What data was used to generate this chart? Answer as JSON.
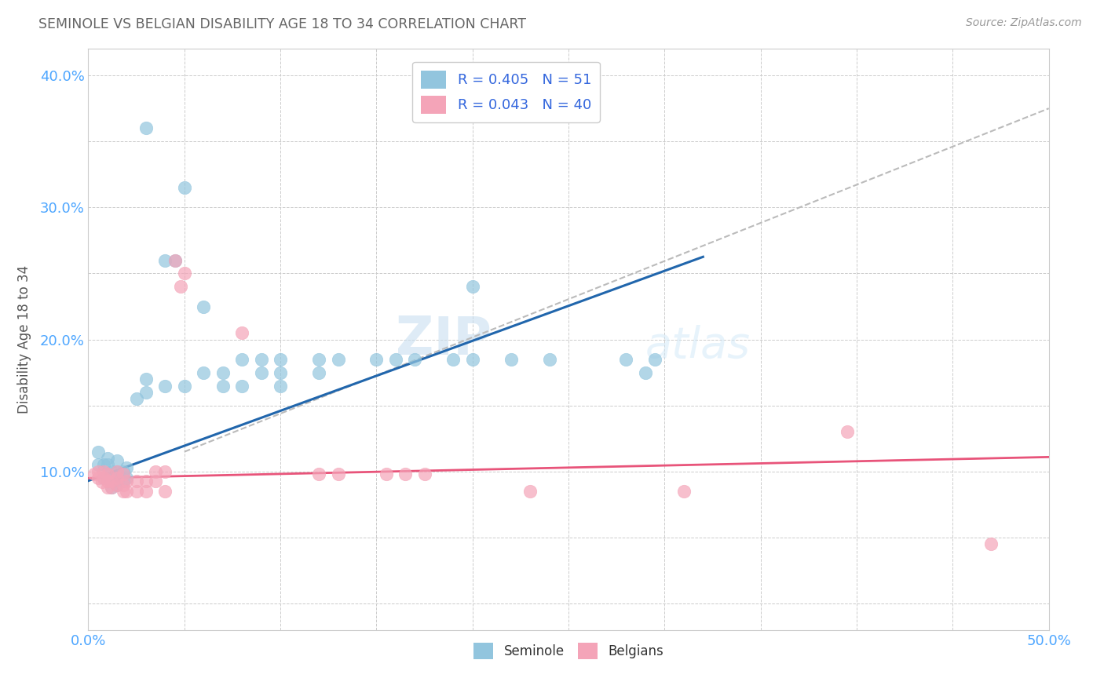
{
  "title": "SEMINOLE VS BELGIAN DISABILITY AGE 18 TO 34 CORRELATION CHART",
  "source": "Source: ZipAtlas.com",
  "ylabel": "Disability Age 18 to 34",
  "xlim": [
    0.0,
    0.5
  ],
  "ylim": [
    -0.02,
    0.42
  ],
  "xticks": [
    0.0,
    0.05,
    0.1,
    0.15,
    0.2,
    0.25,
    0.3,
    0.35,
    0.4,
    0.45,
    0.5
  ],
  "yticks": [
    0.0,
    0.05,
    0.1,
    0.15,
    0.2,
    0.25,
    0.3,
    0.35,
    0.4
  ],
  "seminole_R": 0.405,
  "seminole_N": 51,
  "belgian_R": 0.043,
  "belgian_N": 40,
  "seminole_color": "#92c5de",
  "belgian_color": "#f4a4b8",
  "seminole_line_color": "#2166ac",
  "belgian_line_color": "#e8547a",
  "trend_line_color": "#bbbbbb",
  "background_color": "#ffffff",
  "watermark_zip": "ZIP",
  "watermark_atlas": "atlas",
  "seminole_scatter": [
    [
      0.005,
      0.105
    ],
    [
      0.005,
      0.115
    ],
    [
      0.008,
      0.095
    ],
    [
      0.008,
      0.105
    ],
    [
      0.01,
      0.095
    ],
    [
      0.01,
      0.105
    ],
    [
      0.01,
      0.11
    ],
    [
      0.012,
      0.088
    ],
    [
      0.012,
      0.093
    ],
    [
      0.012,
      0.1
    ],
    [
      0.015,
      0.09
    ],
    [
      0.015,
      0.1
    ],
    [
      0.015,
      0.108
    ],
    [
      0.018,
      0.093
    ],
    [
      0.018,
      0.1
    ],
    [
      0.02,
      0.095
    ],
    [
      0.02,
      0.103
    ],
    [
      0.025,
      0.155
    ],
    [
      0.03,
      0.16
    ],
    [
      0.03,
      0.17
    ],
    [
      0.04,
      0.165
    ],
    [
      0.04,
      0.26
    ],
    [
      0.045,
      0.26
    ],
    [
      0.05,
      0.165
    ],
    [
      0.06,
      0.175
    ],
    [
      0.06,
      0.225
    ],
    [
      0.07,
      0.165
    ],
    [
      0.07,
      0.175
    ],
    [
      0.08,
      0.165
    ],
    [
      0.08,
      0.185
    ],
    [
      0.09,
      0.175
    ],
    [
      0.09,
      0.185
    ],
    [
      0.1,
      0.165
    ],
    [
      0.1,
      0.175
    ],
    [
      0.1,
      0.185
    ],
    [
      0.12,
      0.175
    ],
    [
      0.12,
      0.185
    ],
    [
      0.13,
      0.185
    ],
    [
      0.15,
      0.185
    ],
    [
      0.16,
      0.185
    ],
    [
      0.17,
      0.185
    ],
    [
      0.19,
      0.185
    ],
    [
      0.2,
      0.24
    ],
    [
      0.22,
      0.185
    ],
    [
      0.2,
      0.185
    ],
    [
      0.03,
      0.36
    ],
    [
      0.05,
      0.315
    ],
    [
      0.24,
      0.185
    ],
    [
      0.28,
      0.185
    ],
    [
      0.29,
      0.175
    ],
    [
      0.295,
      0.185
    ]
  ],
  "belgian_scatter": [
    [
      0.003,
      0.098
    ],
    [
      0.005,
      0.095
    ],
    [
      0.005,
      0.1
    ],
    [
      0.007,
      0.092
    ],
    [
      0.008,
      0.095
    ],
    [
      0.008,
      0.1
    ],
    [
      0.01,
      0.088
    ],
    [
      0.01,
      0.093
    ],
    [
      0.01,
      0.098
    ],
    [
      0.012,
      0.088
    ],
    [
      0.012,
      0.093
    ],
    [
      0.015,
      0.09
    ],
    [
      0.015,
      0.095
    ],
    [
      0.015,
      0.1
    ],
    [
      0.018,
      0.085
    ],
    [
      0.018,
      0.09
    ],
    [
      0.018,
      0.098
    ],
    [
      0.02,
      0.085
    ],
    [
      0.02,
      0.093
    ],
    [
      0.025,
      0.085
    ],
    [
      0.025,
      0.093
    ],
    [
      0.03,
      0.085
    ],
    [
      0.03,
      0.093
    ],
    [
      0.035,
      0.093
    ],
    [
      0.035,
      0.1
    ],
    [
      0.04,
      0.085
    ],
    [
      0.04,
      0.1
    ],
    [
      0.045,
      0.26
    ],
    [
      0.048,
      0.24
    ],
    [
      0.05,
      0.25
    ],
    [
      0.08,
      0.205
    ],
    [
      0.12,
      0.098
    ],
    [
      0.13,
      0.098
    ],
    [
      0.155,
      0.098
    ],
    [
      0.165,
      0.098
    ],
    [
      0.175,
      0.098
    ],
    [
      0.23,
      0.085
    ],
    [
      0.31,
      0.085
    ],
    [
      0.395,
      0.13
    ],
    [
      0.47,
      0.045
    ]
  ]
}
